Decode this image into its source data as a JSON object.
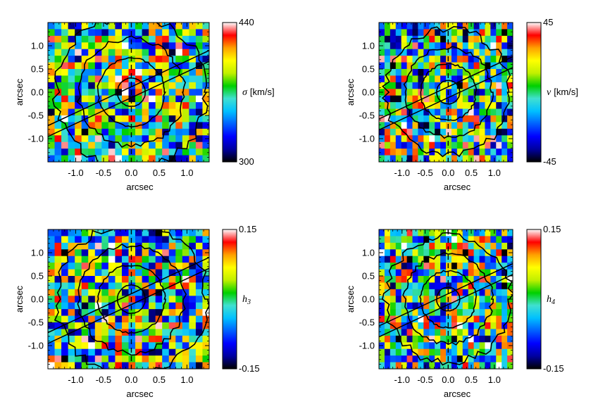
{
  "chart_data": [
    {
      "type": "heatmap",
      "panel": "top-left",
      "xlabel": "arcsec",
      "ylabel": "arcsec",
      "xticks": [
        "-1.0",
        "-0.5",
        "0.0",
        "0.5",
        "1.0"
      ],
      "yticks": [
        "1.0",
        "0.5",
        "0.0",
        "-0.5",
        "-1.0"
      ],
      "xlim": [
        -1.5,
        1.4
      ],
      "ylim": [
        -1.5,
        1.5
      ],
      "colorbar": {
        "label_symbol": "σ",
        "label_unit": "[km/s]",
        "max_label": "440",
        "min_label": "300",
        "range": [
          300,
          440
        ]
      },
      "slit_pa_deg": 25,
      "seed": 11
    },
    {
      "type": "heatmap",
      "panel": "top-right",
      "xlabel": "arcsec",
      "ylabel": "arcsec",
      "xticks": [
        "-1.0",
        "-0.5",
        "0.0",
        "0.5",
        "1.0"
      ],
      "yticks": [
        "1.0",
        "0.5",
        "0.0",
        "-0.5",
        "-1.0"
      ],
      "xlim": [
        -1.5,
        1.4
      ],
      "ylim": [
        -1.5,
        1.5
      ],
      "colorbar": {
        "label_symbol": "v",
        "label_unit": "[km/s]",
        "max_label": "45",
        "min_label": "-45",
        "range": [
          -45,
          45
        ]
      },
      "slit_pa_deg": 25,
      "seed": 23
    },
    {
      "type": "heatmap",
      "panel": "bottom-left",
      "xlabel": "arcsec",
      "ylabel": "arcsec",
      "xticks": [
        "-1.0",
        "-0.5",
        "0.0",
        "0.5",
        "1.0"
      ],
      "yticks": [
        "1.0",
        "0.5",
        "0.0",
        "-0.5",
        "-1.0"
      ],
      "xlim": [
        -1.5,
        1.4
      ],
      "ylim": [
        -1.5,
        1.5
      ],
      "colorbar": {
        "label_symbol": "h",
        "label_sub": "3",
        "max_label": "0.15",
        "min_label": "-0.15",
        "range": [
          -0.15,
          0.15
        ]
      },
      "slit_pa_deg": 25,
      "seed": 37
    },
    {
      "type": "heatmap",
      "panel": "bottom-right",
      "xlabel": "arcsec",
      "ylabel": "arcsec",
      "xticks": [
        "-1.0",
        "-0.5",
        "0.0",
        "0.5",
        "1.0"
      ],
      "yticks": [
        "1.0",
        "0.5",
        "0.0",
        "-0.5",
        "-1.0"
      ],
      "xlim": [
        -1.5,
        1.4
      ],
      "ylim": [
        -1.5,
        1.5
      ],
      "colorbar": {
        "label_symbol": "h",
        "label_sub": "4",
        "max_label": "0.15",
        "min_label": "-0.15",
        "range": [
          -0.15,
          0.15
        ]
      },
      "slit_pa_deg": 25,
      "seed": 51
    }
  ],
  "colors": {
    "colormap": [
      "#000000",
      "#0000a0",
      "#0000ff",
      "#0060ff",
      "#00c0ff",
      "#40e0d0",
      "#00d000",
      "#c0f000",
      "#ffff00",
      "#ffa000",
      "#ff0000",
      "#ffffff"
    ],
    "contour": "#000000"
  }
}
